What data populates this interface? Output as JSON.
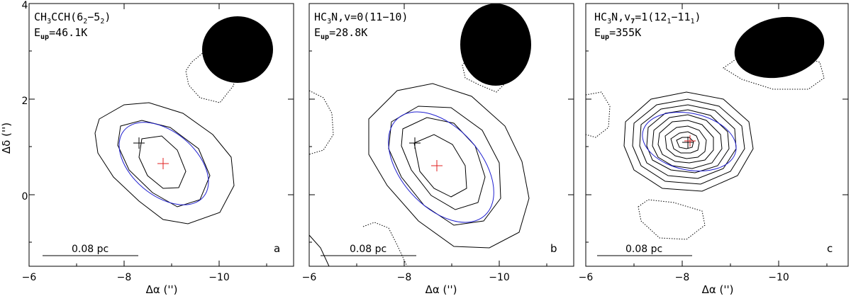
{
  "figure": {
    "y_axis_label": "Δδ ('')",
    "x_axis_label": "Δα ('')",
    "x_ticks": [
      "−6",
      "−8",
      "−10"
    ],
    "y_ticks": [
      "4",
      "2",
      "0"
    ]
  },
  "panels": [
    {
      "molecule_main": "CH",
      "molecule_sub1": "3",
      "molecule_mid": "CCH(6",
      "molecule_sub2": "2",
      "molecule_mid2": "−5",
      "molecule_sub3": "2",
      "molecule_end": ")",
      "energy_prefix": "E",
      "energy_sub": "up",
      "energy_value": "=46.1K",
      "scalebar_label": "0.08 pc",
      "panel_letter": "a"
    },
    {
      "molecule_main": "HC",
      "molecule_sub1": "3",
      "molecule_mid": "N,v=0(11−10)",
      "molecule_sub2": "",
      "molecule_mid2": "",
      "molecule_sub3": "",
      "molecule_end": "",
      "energy_prefix": "E",
      "energy_sub": "up",
      "energy_value": "=28.8K",
      "scalebar_label": "0.08 pc",
      "panel_letter": "b"
    },
    {
      "molecule_main": "HC",
      "molecule_sub1": "3",
      "molecule_mid": "N,v",
      "molecule_sub2": "7",
      "molecule_mid2": "=1(12",
      "molecule_sub3": "1",
      "molecule_end": "−11",
      "molecule_sub4": "1",
      "molecule_end2": ")",
      "energy_prefix": "E",
      "energy_sub": "up",
      "energy_value": "=355K",
      "scalebar_label": "0.08 pc",
      "panel_letter": "c"
    }
  ],
  "colors": {
    "contour": "#000000",
    "fit_ellipse": "#1f1fd0",
    "peak_cross": "#e02020",
    "ref_cross": "#000000",
    "beam": "#000000"
  }
}
